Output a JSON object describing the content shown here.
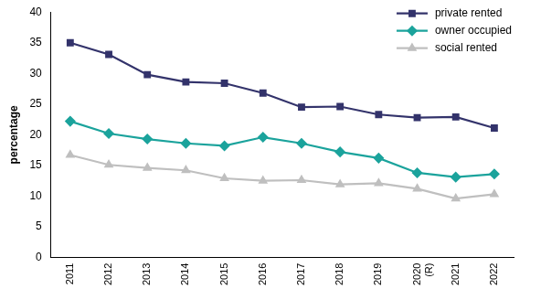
{
  "chart_data": {
    "type": "line",
    "y_label": "percentage",
    "categories": [
      "2011",
      "2012",
      "2013",
      "2014",
      "2015",
      "2016",
      "2017",
      "2018",
      "2019",
      "2020 (R)",
      "2021",
      "2022"
    ],
    "series": [
      {
        "name": "private rented",
        "color": "#33336b",
        "marker": "square",
        "values": [
          35.0,
          33.1,
          29.8,
          28.6,
          28.4,
          26.8,
          24.5,
          24.6,
          23.3,
          22.8,
          22.9,
          21.1
        ]
      },
      {
        "name": "owner occupied",
        "color": "#1ba39c",
        "marker": "diamond",
        "values": [
          22.2,
          20.2,
          19.3,
          18.6,
          18.2,
          19.6,
          18.6,
          17.2,
          16.2,
          13.8,
          13.1,
          13.6
        ]
      },
      {
        "name": "social rented",
        "color": "#bfbfbf",
        "marker": "triangle",
        "values": [
          16.7,
          15.1,
          14.6,
          14.2,
          12.9,
          12.5,
          12.6,
          11.9,
          12.1,
          11.2,
          9.6,
          10.3
        ]
      }
    ],
    "ylim": [
      0,
      40
    ],
    "yticks": [
      0,
      5,
      10,
      15,
      20,
      25,
      30,
      35,
      40
    ],
    "grid": false,
    "legend": "upper right"
  }
}
